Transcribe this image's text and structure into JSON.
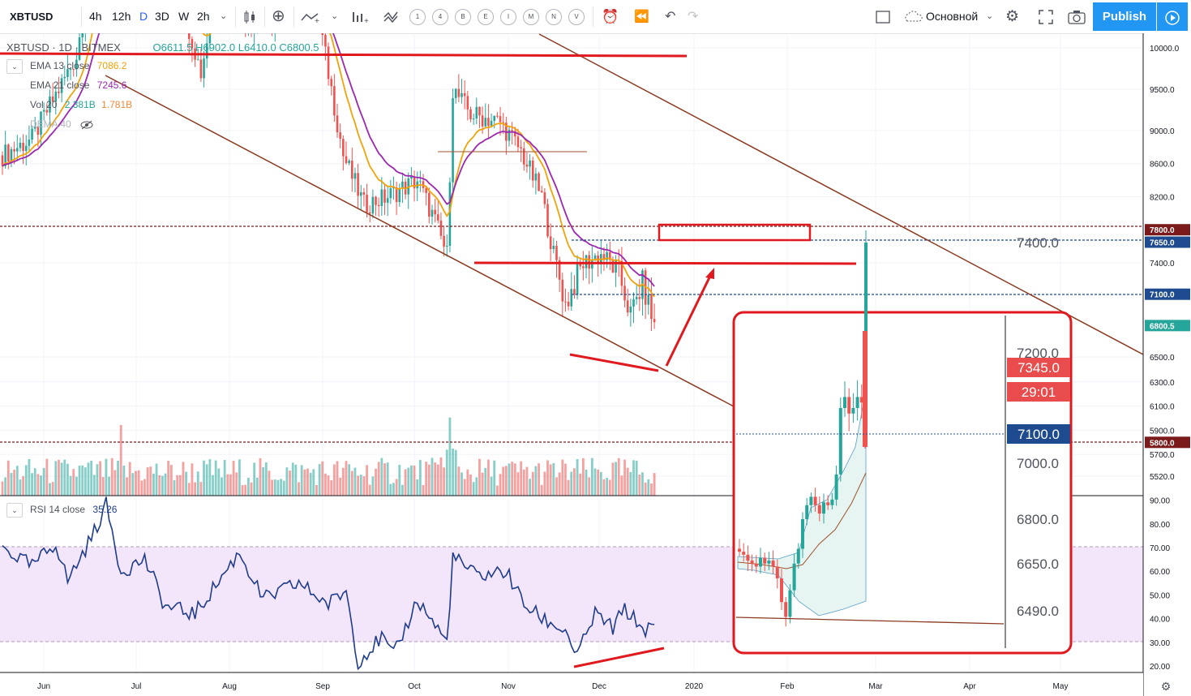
{
  "toolbar": {
    "symbol": "XBTUSD",
    "timeframes": [
      "4h",
      "12h",
      "D",
      "3D",
      "W",
      "2h"
    ],
    "active_timeframe": "D",
    "circle_buttons": [
      "1",
      "4",
      "B",
      "E",
      "I",
      "M",
      "N",
      "V"
    ],
    "layout_name": "Основной",
    "publish_label": "Publish"
  },
  "legend": {
    "title": "XBTUSD · 1D · BITMEX",
    "ohlc": "O6611.5  H6902.0  L6410.0  C6800.5",
    "indicators": [
      {
        "name": "EMA 13 close",
        "value": "7086.2",
        "color": "#f0a30a"
      },
      {
        "name": "EMA 21 close",
        "value": "7245.6",
        "color": "#9c27b0"
      },
      {
        "name": "Vol 20",
        "value": "2.381B",
        "value2": "1.781B",
        "color": "#26a69a"
      },
      {
        "name": "DEMA 40",
        "value": "",
        "color": "#b2b5be"
      }
    ],
    "rsi_label": "RSI 14 close",
    "rsi_value": "35.26"
  },
  "colors": {
    "up": "#26a69a",
    "down": "#ef5350",
    "annotation_red": "#e0191e",
    "trendline_brown": "#8b3a1f",
    "level_dark_red": "#7a1a1a",
    "level_blue": "#1e4b8f",
    "rsi_line": "#1f3d8a",
    "rsi_band": "#f3e5fa"
  },
  "chart_data": [
    {
      "type": "candlestick",
      "title": "XBTUSD, 1D, BITMEX",
      "x_axis_labels": [
        "Jun",
        "Jul",
        "Aug",
        "Sep",
        "Oct",
        "Nov",
        "Dec",
        "2020",
        "Feb",
        "Mar",
        "Apr",
        "May"
      ],
      "price_axis_labels": [
        "10000.0",
        "9500.0",
        "9000.0",
        "8600.0",
        "8200.0",
        "7400.0",
        "6500.0",
        "6300.0",
        "6100.0",
        "5900.0",
        "5700.0",
        "5520.0"
      ],
      "price_markers": [
        {
          "label": "7800.0",
          "color": "#7a1a1a"
        },
        {
          "label": "7650.0",
          "color": "#1e4b8f"
        },
        {
          "label": "7100.0",
          "color": "#1e4b8f"
        },
        {
          "label": "6800.5",
          "color": "#26a69a"
        },
        {
          "label": "5800.0",
          "color": "#7a1a1a"
        }
      ],
      "last_close": 6800.5,
      "horizontal_levels": [
        7800.0,
        7650.0,
        7100.0,
        5800.0
      ]
    },
    {
      "type": "line",
      "title": "RSI 14 close",
      "y_axis_labels": [
        "90.00",
        "80.00",
        "70.00",
        "60.00",
        "50.00",
        "40.00",
        "30.00",
        "20.00"
      ],
      "upper_band": 70,
      "lower_band": 30,
      "last_value": 35.26
    },
    {
      "type": "candlestick",
      "title": "inset zoom",
      "price_axis_labels": [
        "7400.0",
        "7200.0",
        "7000.0",
        "6800.0",
        "6650.0",
        "6490.0"
      ],
      "price_markers": [
        {
          "label": "7345.0",
          "color": "#e84c4c"
        },
        {
          "label": "29:01",
          "color": "#e84c4c"
        },
        {
          "label": "7100.0",
          "color": "#1e4b8f"
        }
      ]
    }
  ]
}
